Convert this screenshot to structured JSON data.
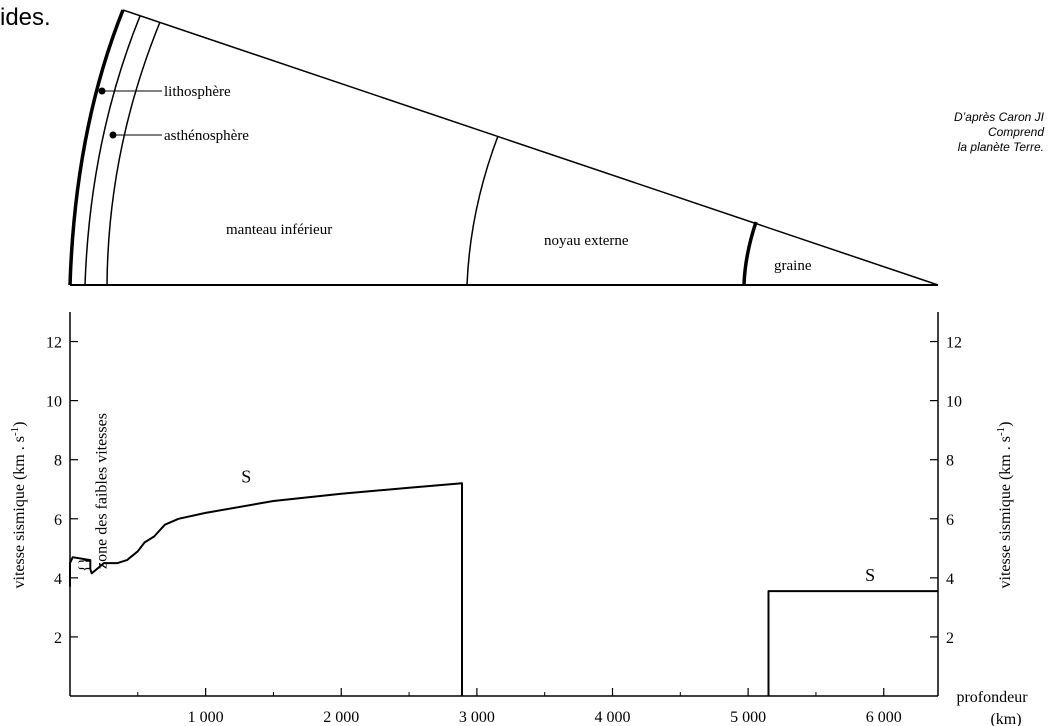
{
  "header_fragment": "ides.",
  "source_note": [
    "D’après Caron JI",
    "Comprend",
    "la planète Terre."
  ],
  "layers": {
    "lithosphere": "lithosphère",
    "asthenosphere": "asthénosphère",
    "lower_mantle": "manteau inférieur",
    "outer_core": "noyau externe",
    "inner_core": "graine"
  },
  "chart_data": {
    "type": "line",
    "xlabel": "profondeur",
    "xunit": "(km)",
    "ylabel_left": "vitesse sismique (km . s",
    "ylabel_right": "vitesse sismique (km . s",
    "ylabel_sup": "-1",
    "ylabel_close": ")",
    "xlim": [
      0,
      6400
    ],
    "ylim": [
      0,
      13
    ],
    "x_ticks": [
      1000,
      2000,
      3000,
      4000,
      5000,
      6000
    ],
    "x_tick_labels": [
      "1 000",
      "2 000",
      "3 000",
      "4 000",
      "5 000",
      "6 000"
    ],
    "y_ticks": [
      2,
      4,
      6,
      8,
      10,
      12
    ],
    "y_tick_labels": [
      "2",
      "4",
      "6",
      "8",
      "10",
      "12"
    ],
    "annotation_low_velocity": "zone des faibles vitesses",
    "series": [
      {
        "name": "S",
        "segments": [
          [
            [
              0,
              3.7
            ],
            [
              0,
              4.5
            ],
            [
              20,
              4.7
            ],
            [
              150,
              4.6
            ],
            [
              150,
              4.3
            ],
            [
              160,
              4.15
            ],
            [
              250,
              4.5
            ],
            [
              350,
              4.5
            ],
            [
              420,
              4.6
            ],
            [
              500,
              4.9
            ],
            [
              550,
              5.2
            ],
            [
              620,
              5.4
            ],
            [
              700,
              5.8
            ],
            [
              800,
              6.0
            ],
            [
              1000,
              6.2
            ],
            [
              1500,
              6.6
            ],
            [
              2000,
              6.85
            ],
            [
              2500,
              7.05
            ],
            [
              2890,
              7.2
            ],
            [
              2890,
              0
            ]
          ],
          [
            [
              5150,
              0
            ],
            [
              5150,
              3.55
            ],
            [
              6400,
              3.55
            ]
          ]
        ]
      }
    ],
    "series_labels": [
      {
        "text": "S",
        "x": 1300,
        "y": 7.1
      },
      {
        "text": "S",
        "x": 5900,
        "y": 3.75
      }
    ]
  }
}
